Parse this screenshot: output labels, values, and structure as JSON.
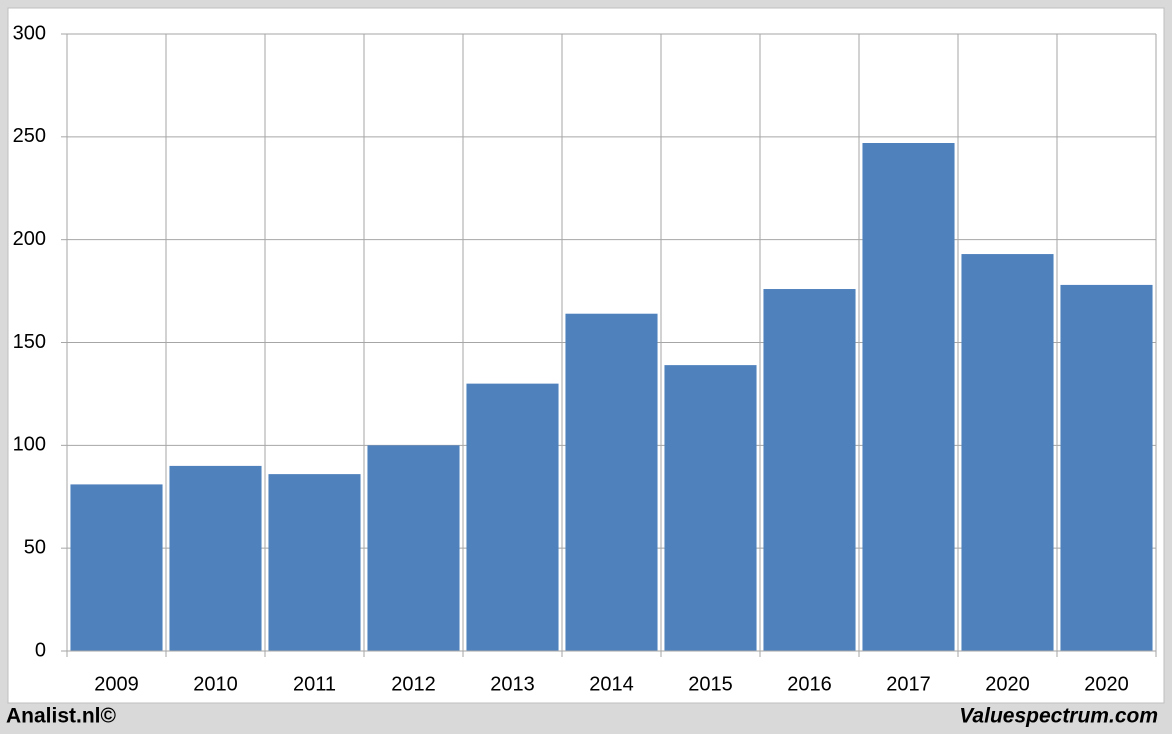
{
  "chart_data": {
    "type": "bar",
    "categories": [
      "2009",
      "2010",
      "2011",
      "2012",
      "2013",
      "2014",
      "2015",
      "2016",
      "2017",
      "2020",
      "2020"
    ],
    "values": [
      81,
      90,
      86,
      100,
      130,
      164,
      139,
      176,
      247,
      193,
      178
    ],
    "color": "#4f81bd",
    "ylim": [
      0,
      300
    ],
    "yticks": [
      0,
      50,
      100,
      150,
      200,
      250,
      300
    ],
    "grid": true,
    "footer_left": "Analist.nl©",
    "footer_right": "Valuespectrum.com"
  }
}
